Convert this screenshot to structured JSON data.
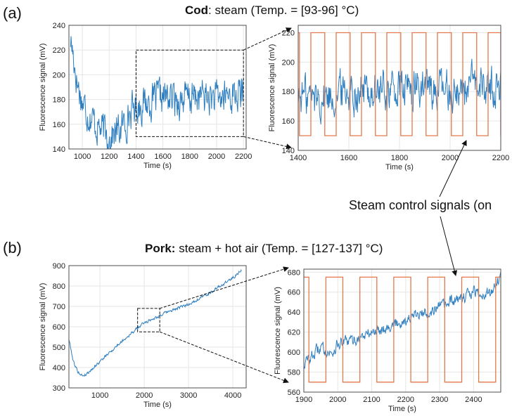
{
  "panel_a": {
    "letter": "(a)",
    "title_bold": "Cod",
    "title_rest": ": steam (Temp. = [93-96] °C)"
  },
  "panel_b": {
    "letter": "(b)",
    "title_bold": "Pork:",
    "title_rest": " steam + hot air (Temp. = [127-137] °C)"
  },
  "callout": "Steam control signals (on",
  "colors": {
    "signal": "#2f7fc0",
    "control": "#e3784a",
    "grid": "#e6e6e6",
    "axis": "#4d4d4d"
  },
  "chart_data": [
    {
      "id": "a-full",
      "type": "line",
      "title": "",
      "xlabel": "Time (s)",
      "ylabel": "Fluorescence signal (mV)",
      "xlim": [
        900,
        2220
      ],
      "ylim": [
        140,
        240
      ],
      "xticks": [
        1000,
        1200,
        1400,
        1600,
        1800,
        2000,
        2200
      ],
      "yticks": [
        140,
        160,
        180,
        200,
        220,
        240
      ],
      "zoom_box": {
        "x": [
          1400,
          2200
        ],
        "y": [
          150,
          220
        ]
      },
      "series": [
        {
          "color": "#2f7fc0",
          "x": [
            910,
            930,
            960,
            1000,
            1050,
            1100,
            1150,
            1200,
            1250,
            1300,
            1350,
            1400,
            1500,
            1600,
            1700,
            1800,
            1900,
            2000,
            2100,
            2200
          ],
          "y": [
            230,
            218,
            195,
            178,
            168,
            160,
            155,
            150,
            153,
            158,
            168,
            175,
            178,
            182,
            180,
            181,
            183,
            180,
            184,
            183
          ],
          "noise": 12
        }
      ]
    },
    {
      "id": "a-zoom",
      "type": "line",
      "title": "",
      "xlabel": "Time (s)",
      "ylabel": "Fluorescence signal (mV)",
      "xlim": [
        1400,
        2200
      ],
      "ylim": [
        140,
        225
      ],
      "xticks": [
        1400,
        1600,
        1800,
        2000,
        2200
      ],
      "yticks": [
        140,
        160,
        180,
        200,
        220
      ],
      "series": [
        {
          "color": "#2f7fc0",
          "x": [
            1400,
            1500,
            1600,
            1700,
            1800,
            1900,
            2000,
            2100,
            2200
          ],
          "y": [
            178,
            176,
            182,
            180,
            181,
            183,
            180,
            184,
            183
          ],
          "noise": 12
        },
        {
          "color": "#e3784a",
          "type": "square",
          "low": 150,
          "high": 220,
          "edges": [
            1405,
            1450,
            1505,
            1550,
            1605,
            1650,
            1705,
            1750,
            1805,
            1850,
            1905,
            1950,
            2005,
            2050,
            2105,
            2150,
            2200
          ]
        }
      ]
    },
    {
      "id": "b-full",
      "type": "line",
      "title": "",
      "xlabel": "Time (s)",
      "ylabel": "Fluorescence signal (mV)",
      "xlim": [
        300,
        4300
      ],
      "ylim": [
        300,
        900
      ],
      "xticks": [
        1000,
        2000,
        3000,
        4000
      ],
      "yticks": [
        300,
        400,
        500,
        600,
        700,
        800,
        900
      ],
      "zoom_box": {
        "x": [
          1850,
          2350
        ],
        "y": [
          575,
          690
        ]
      },
      "series": [
        {
          "color": "#2f7fc0",
          "x": [
            300,
            400,
            500,
            600,
            700,
            1000,
            1500,
            2000,
            2500,
            3000,
            3500,
            4000,
            4200
          ],
          "y": [
            540,
            430,
            380,
            360,
            368,
            430,
            530,
            620,
            670,
            710,
            770,
            840,
            880
          ],
          "noise": 6
        }
      ]
    },
    {
      "id": "b-zoom",
      "type": "line",
      "title": "",
      "xlabel": "Time (s)",
      "ylabel": "Fluorescence signal (mV)",
      "xlim": [
        1900,
        2480
      ],
      "ylim": [
        560,
        683
      ],
      "xticks": [
        1900,
        2000,
        2100,
        2200,
        2300,
        2400
      ],
      "yticks": [
        560,
        580,
        600,
        620,
        640,
        660,
        680
      ],
      "series": [
        {
          "color": "#2f7fc0",
          "x": [
            1900,
            1950,
            1980,
            2000,
            2050,
            2100,
            2150,
            2200,
            2250,
            2300,
            2350,
            2400,
            2450,
            2480
          ],
          "y": [
            588,
            605,
            598,
            608,
            612,
            620,
            626,
            632,
            638,
            645,
            652,
            660,
            658,
            678
          ],
          "noise": 5
        },
        {
          "color": "#e3784a",
          "type": "square",
          "low": 570,
          "high": 675,
          "edges": [
            1915,
            1965,
            2015,
            2065,
            2115,
            2165,
            2215,
            2265,
            2315,
            2365,
            2415,
            2465
          ]
        }
      ]
    }
  ]
}
